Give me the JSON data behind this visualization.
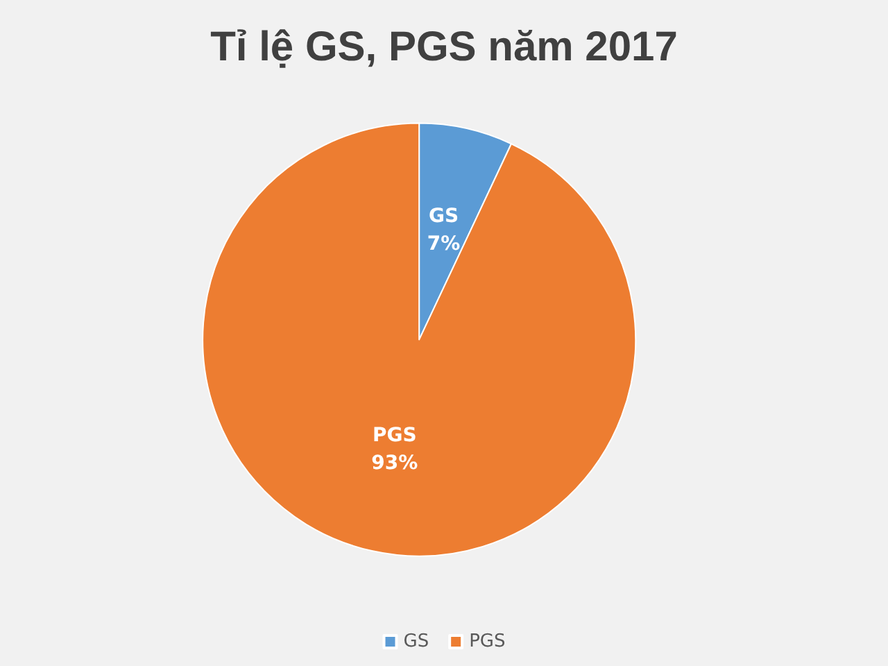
{
  "chart_data": {
    "type": "pie",
    "title": "Tỉ lệ GS, PGS năm 2017",
    "categories": [
      "GS",
      "PGS"
    ],
    "values": [
      7,
      93
    ],
    "value_labels": [
      "7%",
      "93%"
    ],
    "colors": [
      "#5b9bd5",
      "#ed7d31"
    ],
    "legend": "bottom"
  }
}
